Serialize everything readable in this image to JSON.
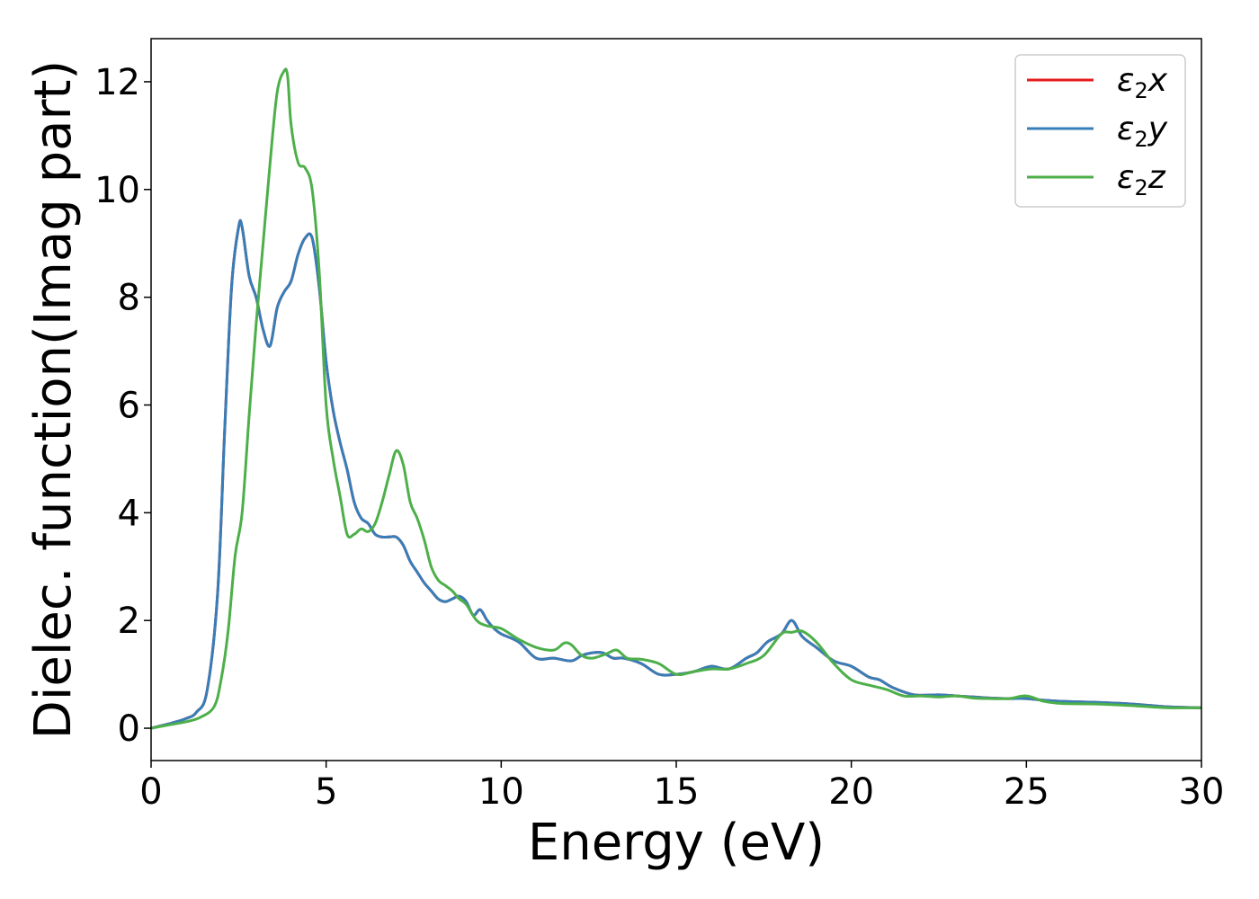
{
  "chart_data": {
    "type": "line",
    "xlabel": "Energy (eV)",
    "ylabel": "Dielec. function(Imag part)",
    "xlim": [
      0,
      30
    ],
    "ylim": [
      -0.6,
      12.8
    ],
    "xticks": [
      0,
      5,
      10,
      15,
      20,
      25,
      30
    ],
    "yticks": [
      0,
      2,
      4,
      6,
      8,
      10,
      12
    ],
    "grid": false,
    "legend_position": "top-right",
    "series": [
      {
        "name": "ε2x",
        "legend_base": "ε",
        "legend_sub": "2",
        "legend_suffix": "x",
        "color": "#e41a1c",
        "x": [
          0,
          0.5,
          1,
          1.3,
          1.6,
          1.9,
          2.1,
          2.3,
          2.5,
          2.6,
          2.8,
          3.0,
          3.2,
          3.4,
          3.6,
          3.8,
          4.0,
          4.2,
          4.4,
          4.6,
          4.8,
          5.0,
          5.2,
          5.4,
          5.6,
          5.8,
          6.0,
          6.2,
          6.4,
          6.6,
          6.8,
          7.0,
          7.2,
          7.4,
          7.6,
          7.8,
          8.0,
          8.2,
          8.4,
          8.6,
          8.8,
          9.0,
          9.2,
          9.4,
          9.6,
          9.8,
          10.0,
          10.5,
          11.0,
          11.5,
          12.0,
          12.3,
          12.6,
          12.9,
          13.2,
          13.5,
          14.0,
          14.5,
          15.0,
          15.5,
          16.0,
          16.5,
          17.0,
          17.3,
          17.6,
          18.0,
          18.3,
          18.6,
          19.0,
          19.5,
          20.0,
          20.5,
          20.8,
          21.2,
          21.8,
          22.5,
          23.0,
          23.5,
          24.0,
          24.5,
          25.0,
          25.5,
          26.0,
          27.0,
          28.0,
          29.0,
          30.0
        ],
        "y": [
          0,
          0.08,
          0.18,
          0.3,
          0.7,
          2.5,
          5.5,
          8.2,
          9.3,
          9.3,
          8.4,
          8.0,
          7.4,
          7.1,
          7.8,
          8.1,
          8.3,
          8.8,
          9.1,
          9.1,
          8.2,
          6.8,
          5.9,
          5.3,
          4.8,
          4.2,
          3.9,
          3.8,
          3.6,
          3.55,
          3.55,
          3.55,
          3.4,
          3.1,
          2.9,
          2.7,
          2.55,
          2.4,
          2.35,
          2.4,
          2.45,
          2.35,
          2.1,
          2.2,
          2.0,
          1.85,
          1.75,
          1.6,
          1.3,
          1.3,
          1.25,
          1.35,
          1.4,
          1.4,
          1.3,
          1.3,
          1.2,
          1.0,
          1.0,
          1.05,
          1.15,
          1.1,
          1.3,
          1.4,
          1.6,
          1.75,
          2.0,
          1.7,
          1.5,
          1.25,
          1.15,
          0.95,
          0.9,
          0.75,
          0.62,
          0.62,
          0.6,
          0.58,
          0.56,
          0.55,
          0.55,
          0.52,
          0.5,
          0.48,
          0.45,
          0.4,
          0.38
        ]
      },
      {
        "name": "ε2y",
        "legend_base": "ε",
        "legend_sub": "2",
        "legend_suffix": "y",
        "color": "#377eb8",
        "x": [
          0,
          0.5,
          1,
          1.3,
          1.6,
          1.9,
          2.1,
          2.3,
          2.5,
          2.6,
          2.8,
          3.0,
          3.2,
          3.4,
          3.6,
          3.8,
          4.0,
          4.2,
          4.4,
          4.6,
          4.8,
          5.0,
          5.2,
          5.4,
          5.6,
          5.8,
          6.0,
          6.2,
          6.4,
          6.6,
          6.8,
          7.0,
          7.2,
          7.4,
          7.6,
          7.8,
          8.0,
          8.2,
          8.4,
          8.6,
          8.8,
          9.0,
          9.2,
          9.4,
          9.6,
          9.8,
          10.0,
          10.5,
          11.0,
          11.5,
          12.0,
          12.3,
          12.6,
          12.9,
          13.2,
          13.5,
          14.0,
          14.5,
          15.0,
          15.5,
          16.0,
          16.5,
          17.0,
          17.3,
          17.6,
          18.0,
          18.3,
          18.6,
          19.0,
          19.5,
          20.0,
          20.5,
          20.8,
          21.2,
          21.8,
          22.5,
          23.0,
          23.5,
          24.0,
          24.5,
          25.0,
          25.5,
          26.0,
          27.0,
          28.0,
          29.0,
          30.0
        ],
        "y": [
          0,
          0.08,
          0.18,
          0.3,
          0.7,
          2.5,
          5.5,
          8.2,
          9.3,
          9.3,
          8.4,
          8.0,
          7.4,
          7.1,
          7.8,
          8.1,
          8.3,
          8.8,
          9.1,
          9.1,
          8.2,
          6.8,
          5.9,
          5.3,
          4.8,
          4.2,
          3.9,
          3.8,
          3.6,
          3.55,
          3.55,
          3.55,
          3.4,
          3.1,
          2.9,
          2.7,
          2.55,
          2.4,
          2.35,
          2.4,
          2.45,
          2.35,
          2.1,
          2.2,
          2.0,
          1.85,
          1.75,
          1.6,
          1.3,
          1.3,
          1.25,
          1.35,
          1.4,
          1.4,
          1.3,
          1.3,
          1.2,
          1.0,
          1.0,
          1.05,
          1.15,
          1.1,
          1.3,
          1.4,
          1.6,
          1.75,
          2.0,
          1.7,
          1.5,
          1.25,
          1.15,
          0.95,
          0.9,
          0.75,
          0.62,
          0.62,
          0.6,
          0.58,
          0.56,
          0.55,
          0.55,
          0.52,
          0.5,
          0.48,
          0.45,
          0.4,
          0.38
        ]
      },
      {
        "name": "ε2z",
        "legend_base": "ε",
        "legend_sub": "2",
        "legend_suffix": "z",
        "color": "#4daf4a",
        "x": [
          0,
          0.5,
          1,
          1.4,
          1.8,
          2.0,
          2.2,
          2.4,
          2.6,
          2.8,
          3.0,
          3.2,
          3.4,
          3.6,
          3.8,
          3.9,
          4.0,
          4.2,
          4.4,
          4.6,
          4.8,
          5.0,
          5.2,
          5.4,
          5.6,
          5.8,
          6.0,
          6.2,
          6.4,
          6.6,
          6.8,
          7.0,
          7.2,
          7.4,
          7.6,
          7.8,
          8.0,
          8.2,
          8.4,
          8.6,
          8.8,
          9.0,
          9.3,
          9.6,
          10.0,
          10.5,
          11.0,
          11.5,
          11.8,
          12.0,
          12.3,
          12.6,
          13.0,
          13.3,
          13.6,
          14.0,
          14.5,
          15.0,
          15.5,
          16.0,
          16.5,
          17.0,
          17.5,
          18.0,
          18.3,
          18.6,
          19.0,
          19.5,
          20.0,
          20.5,
          21.0,
          21.5,
          22.0,
          22.5,
          23.0,
          23.5,
          24.0,
          24.5,
          25.0,
          25.5,
          26.0,
          27.0,
          28.0,
          29.0,
          30.0
        ],
        "y": [
          0,
          0.06,
          0.12,
          0.2,
          0.4,
          0.9,
          1.8,
          3.2,
          4.0,
          5.8,
          7.5,
          9.0,
          10.5,
          11.8,
          12.2,
          12.1,
          11.2,
          10.5,
          10.4,
          10.0,
          8.5,
          6.0,
          5.0,
          4.3,
          3.6,
          3.6,
          3.7,
          3.65,
          3.8,
          4.2,
          4.7,
          5.15,
          4.9,
          4.2,
          3.9,
          3.5,
          3.0,
          2.75,
          2.65,
          2.55,
          2.4,
          2.3,
          2.0,
          1.9,
          1.85,
          1.65,
          1.5,
          1.45,
          1.58,
          1.55,
          1.35,
          1.3,
          1.38,
          1.45,
          1.3,
          1.28,
          1.2,
          1.0,
          1.05,
          1.1,
          1.1,
          1.2,
          1.35,
          1.75,
          1.78,
          1.8,
          1.6,
          1.2,
          0.9,
          0.8,
          0.72,
          0.6,
          0.6,
          0.58,
          0.6,
          0.56,
          0.55,
          0.55,
          0.6,
          0.5,
          0.46,
          0.45,
          0.42,
          0.38,
          0.38
        ]
      }
    ]
  }
}
